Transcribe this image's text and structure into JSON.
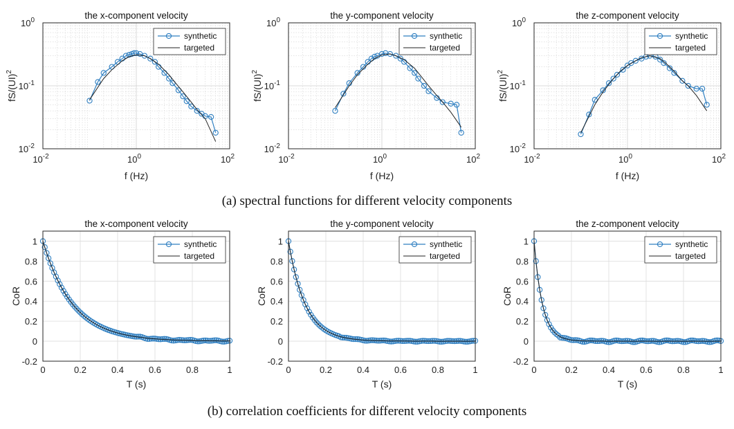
{
  "captions": {
    "a": "(a) spectral functions for different velocity components",
    "b": "(b) correlation coefficients for different velocity components"
  },
  "colors": {
    "synthetic": "#2f7fc1",
    "targeted": "#222222"
  },
  "chart_data": [
    {
      "id": "spec-x",
      "type": "line",
      "title": "the x-component velocity",
      "xlabel": "f (Hz)",
      "ylabel": "fS/(UI)^2",
      "xscale": "log",
      "yscale": "log",
      "xlim": [
        0.01,
        100
      ],
      "ylim": [
        0.01,
        1
      ],
      "xticks": [
        [
          "0.01",
          "-2"
        ],
        [
          "1",
          "0"
        ],
        [
          "100",
          "2"
        ]
      ],
      "yticks": [
        [
          "0.01",
          "-2"
        ],
        [
          "0.1",
          "-1"
        ],
        [
          "1",
          "0"
        ]
      ],
      "grid": true,
      "minor_grid": true,
      "legend": "top-right",
      "series": [
        {
          "name": "synthetic",
          "marker": "circle",
          "x": [
            0.1,
            0.15,
            0.2,
            0.3,
            0.4,
            0.5,
            0.6,
            0.7,
            0.8,
            0.9,
            1.0,
            1.2,
            1.5,
            2,
            2.5,
            3,
            4,
            5,
            6,
            8,
            10,
            12,
            15,
            20,
            25,
            30,
            40,
            50
          ],
          "y": [
            0.058,
            0.115,
            0.16,
            0.2,
            0.24,
            0.27,
            0.3,
            0.31,
            0.32,
            0.33,
            0.33,
            0.32,
            0.3,
            0.27,
            0.24,
            0.2,
            0.16,
            0.13,
            0.11,
            0.085,
            0.068,
            0.057,
            0.047,
            0.04,
            0.036,
            0.033,
            0.032,
            0.018
          ]
        },
        {
          "name": "targeted",
          "x": [
            0.1,
            0.2,
            0.3,
            0.5,
            0.7,
            1,
            1.5,
            2,
            3,
            5,
            7,
            10,
            15,
            20,
            30,
            50
          ],
          "y": [
            0.06,
            0.13,
            0.18,
            0.25,
            0.29,
            0.31,
            0.3,
            0.27,
            0.22,
            0.15,
            0.11,
            0.08,
            0.055,
            0.042,
            0.03,
            0.013
          ]
        }
      ]
    },
    {
      "id": "spec-y",
      "type": "line",
      "title": "the y-component velocity",
      "xlabel": "f (Hz)",
      "ylabel": "fS/(UI)^2",
      "xscale": "log",
      "yscale": "log",
      "xlim": [
        0.01,
        100
      ],
      "ylim": [
        0.01,
        1
      ],
      "xticks": [
        [
          "0.01",
          "-2"
        ],
        [
          "1",
          "0"
        ],
        [
          "100",
          "2"
        ]
      ],
      "yticks": [
        [
          "0.01",
          "-2"
        ],
        [
          "0.1",
          "-1"
        ],
        [
          "1",
          "0"
        ]
      ],
      "grid": true,
      "minor_grid": true,
      "legend": "top-right",
      "series": [
        {
          "name": "synthetic",
          "marker": "circle",
          "x": [
            0.1,
            0.15,
            0.2,
            0.3,
            0.4,
            0.5,
            0.6,
            0.7,
            0.8,
            1.0,
            1.2,
            1.5,
            2,
            2.5,
            3,
            4,
            5,
            6,
            8,
            10,
            15,
            20,
            30,
            40,
            50
          ],
          "y": [
            0.04,
            0.075,
            0.11,
            0.16,
            0.2,
            0.24,
            0.27,
            0.29,
            0.3,
            0.32,
            0.33,
            0.32,
            0.3,
            0.27,
            0.24,
            0.19,
            0.16,
            0.13,
            0.1,
            0.082,
            0.064,
            0.055,
            0.052,
            0.05,
            0.018
          ]
        },
        {
          "name": "targeted",
          "x": [
            0.1,
            0.2,
            0.3,
            0.5,
            0.7,
            1,
            1.5,
            2,
            3,
            5,
            7,
            10,
            15,
            20,
            30,
            50
          ],
          "y": [
            0.045,
            0.1,
            0.15,
            0.22,
            0.27,
            0.31,
            0.32,
            0.3,
            0.26,
            0.19,
            0.14,
            0.1,
            0.07,
            0.055,
            0.038,
            0.022
          ]
        }
      ]
    },
    {
      "id": "spec-z",
      "type": "line",
      "title": "the z-component velocity",
      "xlabel": "f (Hz)",
      "ylabel": "fS/(UI)^2",
      "xscale": "log",
      "yscale": "log",
      "xlim": [
        0.01,
        100
      ],
      "ylim": [
        0.01,
        1
      ],
      "xticks": [
        [
          "0.01",
          "-2"
        ],
        [
          "1",
          "0"
        ],
        [
          "100",
          "2"
        ]
      ],
      "yticks": [
        [
          "0.01",
          "-2"
        ],
        [
          "0.1",
          "-1"
        ],
        [
          "1",
          "0"
        ]
      ],
      "grid": true,
      "minor_grid": true,
      "legend": "top-right",
      "series": [
        {
          "name": "synthetic",
          "marker": "circle",
          "x": [
            0.1,
            0.15,
            0.2,
            0.3,
            0.4,
            0.5,
            0.6,
            0.8,
            1.0,
            1.2,
            1.5,
            2,
            2.5,
            3,
            4,
            5,
            6,
            8,
            10,
            15,
            20,
            30,
            40,
            50
          ],
          "y": [
            0.017,
            0.035,
            0.06,
            0.085,
            0.11,
            0.13,
            0.15,
            0.18,
            0.21,
            0.23,
            0.25,
            0.27,
            0.29,
            0.3,
            0.29,
            0.26,
            0.23,
            0.19,
            0.16,
            0.12,
            0.1,
            0.09,
            0.09,
            0.05
          ]
        },
        {
          "name": "targeted",
          "x": [
            0.1,
            0.2,
            0.3,
            0.5,
            0.7,
            1,
            1.5,
            2,
            3,
            5,
            7,
            10,
            15,
            20,
            30,
            50
          ],
          "y": [
            0.018,
            0.05,
            0.08,
            0.13,
            0.17,
            0.21,
            0.25,
            0.28,
            0.3,
            0.27,
            0.22,
            0.17,
            0.12,
            0.1,
            0.07,
            0.04
          ]
        }
      ]
    },
    {
      "id": "cor-x",
      "type": "line",
      "title": "the x-component velocity",
      "xlabel": "T (s)",
      "ylabel": "CoR",
      "xlim": [
        0,
        1
      ],
      "ylim": [
        -0.2,
        1.1
      ],
      "xticks": [
        "0",
        "0.2",
        "0.4",
        "0.6",
        "0.8",
        "1"
      ],
      "yticks": [
        "-0.2",
        "0",
        "0.2",
        "0.4",
        "0.6",
        "0.8",
        "1"
      ],
      "grid": true,
      "legend": "top-right",
      "decay_time_s": 0.16,
      "noise_amplitude": 0.008,
      "series": [
        {
          "name": "synthetic",
          "marker": "circle"
        },
        {
          "name": "targeted"
        }
      ]
    },
    {
      "id": "cor-y",
      "type": "line",
      "title": "the y-component velocity",
      "xlabel": "T (s)",
      "ylabel": "CoR",
      "xlim": [
        0,
        1
      ],
      "ylim": [
        -0.2,
        1.1
      ],
      "xticks": [
        "0",
        "0.2",
        "0.4",
        "0.6",
        "0.8",
        "1"
      ],
      "yticks": [
        "-0.2",
        "0",
        "0.2",
        "0.4",
        "0.6",
        "0.8",
        "1"
      ],
      "grid": true,
      "legend": "top-right",
      "decay_time_s": 0.09,
      "noise_amplitude": 0.006,
      "series": [
        {
          "name": "synthetic",
          "marker": "circle"
        },
        {
          "name": "targeted"
        }
      ]
    },
    {
      "id": "cor-z",
      "type": "line",
      "title": "the z-component velocity",
      "xlabel": "T (s)",
      "ylabel": "CoR",
      "xlim": [
        0,
        1
      ],
      "ylim": [
        -0.2,
        1.1
      ],
      "xticks": [
        "0",
        "0.2",
        "0.4",
        "0.6",
        "0.8",
        "1"
      ],
      "yticks": [
        "-0.2",
        "0",
        "0.2",
        "0.4",
        "0.6",
        "0.8",
        "1"
      ],
      "grid": true,
      "legend": "top-right",
      "decay_time_s": 0.045,
      "noise_amplitude": 0.01,
      "series": [
        {
          "name": "synthetic",
          "marker": "circle"
        },
        {
          "name": "targeted"
        }
      ]
    }
  ]
}
